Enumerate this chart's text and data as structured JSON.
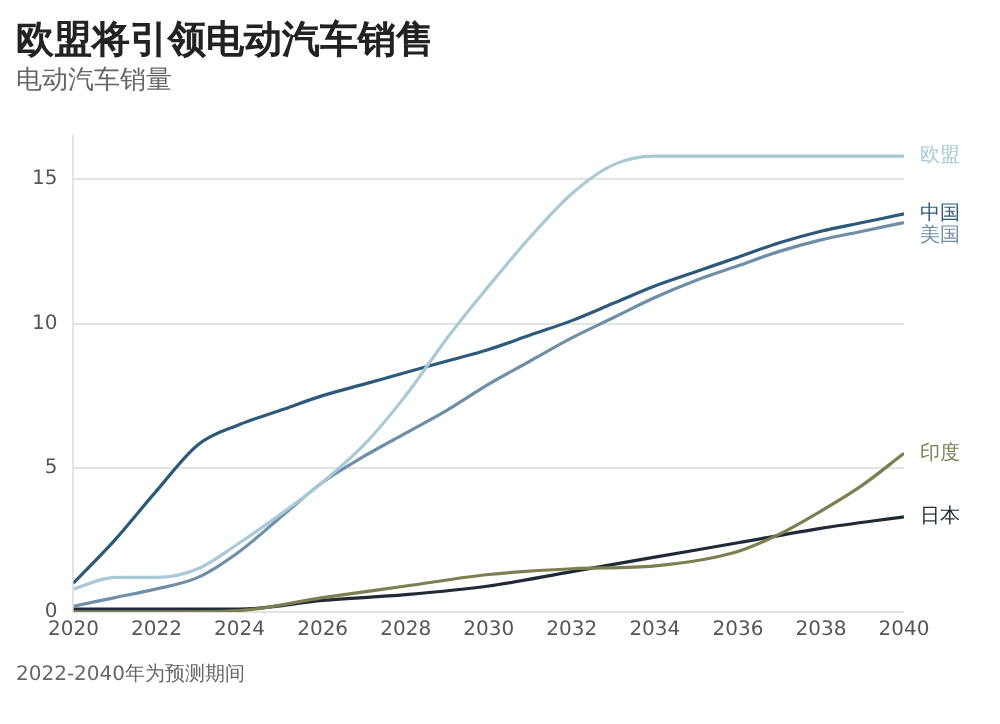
{
  "chart_data": {
    "type": "line",
    "title": "欧盟将引领电动汽车销售",
    "subtitle": "电动汽车销量",
    "annotations": [
      "2022-2040年为预测期间"
    ],
    "xlim": [
      2020,
      2040
    ],
    "xticks": [
      2020,
      2022,
      2024,
      2026,
      2028,
      2030,
      2032,
      2034,
      2036,
      2038,
      2040
    ],
    "ylim": [
      0,
      16.5
    ],
    "yticks": [
      0,
      5,
      10,
      15
    ],
    "grid": "y",
    "legend": false,
    "marker": "none",
    "series": [
      {
        "name": "欧盟",
        "color": "#a9c9d6",
        "x": [
          2020,
          2021,
          2022,
          2023,
          2024,
          2025,
          2026,
          2027,
          2028,
          2029,
          2030,
          2031,
          2032,
          2033,
          2034,
          2036,
          2038,
          2040
        ],
        "values": [
          0.8,
          1.2,
          1.2,
          1.5,
          2.4,
          3.4,
          4.5,
          5.8,
          7.5,
          9.5,
          11.3,
          13,
          14.5,
          15.5,
          15.8,
          15.8,
          15.8,
          15.8
        ]
      },
      {
        "name": "中国",
        "color": "#2d5a78",
        "x": [
          2020,
          2021,
          2022,
          2023,
          2024,
          2025,
          2026,
          2027,
          2028,
          2029,
          2030,
          2031,
          2032,
          2033,
          2034,
          2035,
          2036,
          2037,
          2038,
          2039,
          2040
        ],
        "values": [
          1.0,
          2.5,
          4.2,
          5.8,
          6.5,
          7.0,
          7.5,
          7.9,
          8.3,
          8.7,
          9.1,
          9.6,
          10.1,
          10.7,
          11.3,
          11.8,
          12.3,
          12.8,
          13.2,
          13.5,
          13.8
        ]
      },
      {
        "name": "美国",
        "color": "#6f8fa6",
        "x": [
          2020,
          2021,
          2022,
          2023,
          2024,
          2025,
          2026,
          2027,
          2028,
          2029,
          2030,
          2031,
          2032,
          2033,
          2034,
          2035,
          2036,
          2037,
          2038,
          2039,
          2040
        ],
        "values": [
          0.2,
          0.5,
          0.8,
          1.2,
          2.1,
          3.3,
          4.5,
          5.4,
          6.2,
          7.0,
          7.9,
          8.7,
          9.5,
          10.2,
          10.9,
          11.5,
          12.0,
          12.5,
          12.9,
          13.2,
          13.5
        ]
      },
      {
        "name": "印度",
        "color": "#7d7f52",
        "x": [
          2020,
          2022,
          2024,
          2026,
          2028,
          2030,
          2032,
          2034,
          2036,
          2037,
          2038,
          2039,
          2040
        ],
        "values": [
          0,
          0,
          0.05,
          0.5,
          0.9,
          1.3,
          1.5,
          1.6,
          2.1,
          2.7,
          3.5,
          4.4,
          5.5
        ]
      },
      {
        "name": "日本",
        "color": "#1f2a36",
        "x": [
          2020,
          2022,
          2024,
          2026,
          2028,
          2030,
          2032,
          2034,
          2036,
          2038,
          2040
        ],
        "values": [
          0.1,
          0.1,
          0.1,
          0.4,
          0.6,
          0.9,
          1.4,
          1.9,
          2.4,
          2.9,
          3.3
        ]
      }
    ]
  }
}
